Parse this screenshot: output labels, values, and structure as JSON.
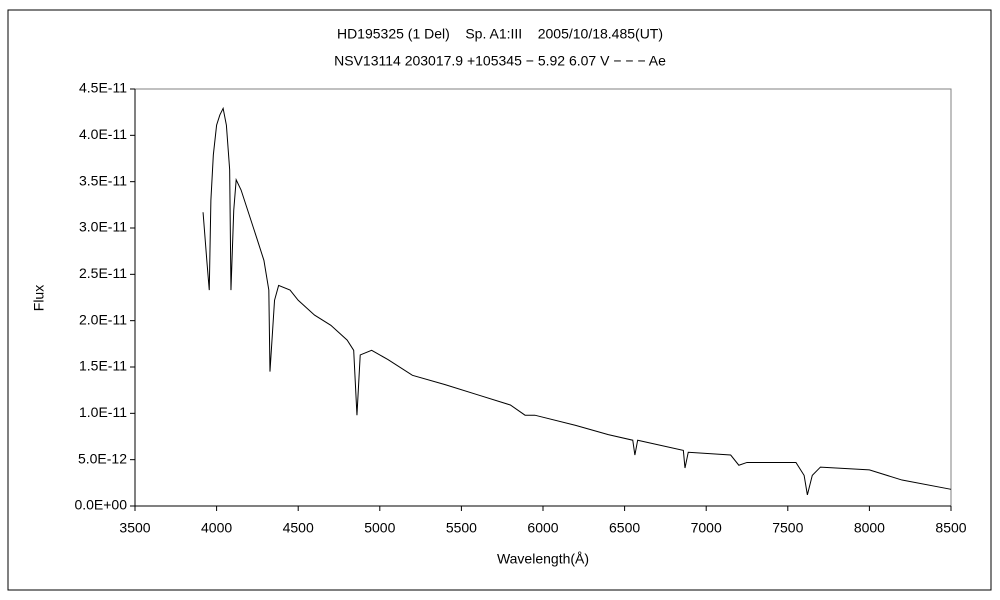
{
  "chart_data": {
    "type": "line",
    "title": "HD195325 (1 Del)    Sp. A1:III    2005/10/18.485(UT)",
    "subtitle": "NSV13114 203017.9 +105345 − 5.92 6.07 V − − − Ae",
    "x_label": "Wavelength(Å)",
    "y_label": "Flux",
    "xlim": [
      3500,
      8500
    ],
    "xticks": [
      3500,
      4000,
      4500,
      5000,
      5500,
      6000,
      6500,
      7000,
      7500,
      8000,
      8500
    ],
    "ylim": [
      0,
      4.5e-11
    ],
    "yticks": [
      {
        "value": 0,
        "label": "0.0E+00"
      },
      {
        "value": 5e-12,
        "label": "5.0E-12"
      },
      {
        "value": 1e-11,
        "label": "1.0E-11"
      },
      {
        "value": 1.5e-11,
        "label": "1.5E-11"
      },
      {
        "value": 2e-11,
        "label": "2.0E-11"
      },
      {
        "value": 2.5e-11,
        "label": "2.5E-11"
      },
      {
        "value": 3e-11,
        "label": "3.0E-11"
      },
      {
        "value": 3.5e-11,
        "label": "3.5E-11"
      },
      {
        "value": 4e-11,
        "label": "4.0E-11"
      },
      {
        "value": 4.5e-11,
        "label": "4.5E-11"
      }
    ],
    "grid": false,
    "color": "#000000",
    "x": [
      3917,
      3940,
      3955,
      3965,
      3980,
      4000,
      4020,
      4040,
      4060,
      4080,
      4088,
      4105,
      4120,
      4150,
      4200,
      4250,
      4290,
      4320,
      4327,
      4355,
      4380,
      4450,
      4500,
      4600,
      4700,
      4800,
      4840,
      4860,
      4880,
      4950,
      5050,
      5200,
      5400,
      5600,
      5800,
      5890,
      5950,
      6200,
      6400,
      6550,
      6563,
      6580,
      6860,
      6870,
      6890,
      7150,
      7200,
      7250,
      7550,
      7600,
      7620,
      7650,
      7700,
      8000,
      8200,
      8500
    ],
    "values": [
      3.17e-11,
      2.65e-11,
      2.33e-11,
      3.3e-11,
      3.79e-11,
      4.11e-11,
      4.22e-11,
      4.29e-11,
      4.11e-11,
      3.63e-11,
      2.33e-11,
      3.19e-11,
      3.52e-11,
      3.41e-11,
      3.14e-11,
      2.87e-11,
      2.65e-11,
      2.33e-11,
      1.45e-11,
      2.22e-11,
      2.38e-11,
      2.33e-11,
      2.22e-11,
      2.06e-11,
      1.95e-11,
      1.79e-11,
      1.68e-11,
      9.8e-12,
      1.63e-11,
      1.68e-11,
      1.58e-11,
      1.41e-11,
      1.31e-11,
      1.2e-11,
      1.09e-11,
      9.8e-12,
      9.8e-12,
      8.7e-12,
      7.7e-12,
      7.1e-12,
      5.5e-12,
      7.1e-12,
      6e-12,
      4.1e-12,
      5.8e-12,
      5.5e-12,
      4.4e-12,
      4.7e-12,
      4.7e-12,
      3.3e-12,
      1.2e-12,
      3.3e-12,
      4.2e-12,
      3.9e-12,
      2.8e-12,
      1.8e-12
    ]
  }
}
